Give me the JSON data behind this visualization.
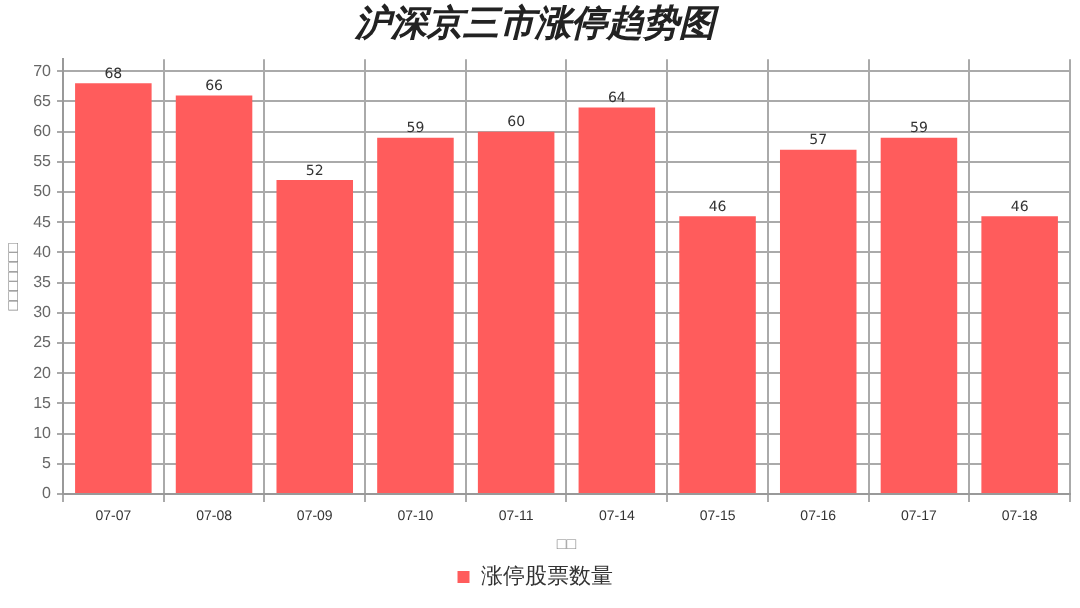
{
  "chart_data": {
    "type": "bar",
    "title": "沪深京三市涨停趋势图",
    "xlabel": "□□",
    "ylabel": "□□□□□□□",
    "categories": [
      "07-07",
      "07-08",
      "07-09",
      "07-10",
      "07-11",
      "07-14",
      "07-15",
      "07-16",
      "07-17",
      "07-18"
    ],
    "series": [
      {
        "name": "涨停股票数量",
        "color": "#ff5c5c",
        "values": [
          68,
          66,
          52,
          59,
          60,
          64,
          46,
          57,
          59,
          46
        ]
      }
    ],
    "ylim": [
      0,
      72
    ],
    "yticks": [
      0,
      5,
      10,
      15,
      20,
      25,
      30,
      35,
      40,
      45,
      50,
      55,
      60,
      65,
      70
    ],
    "grid": true,
    "legend": "bottom",
    "data_labels": true
  }
}
